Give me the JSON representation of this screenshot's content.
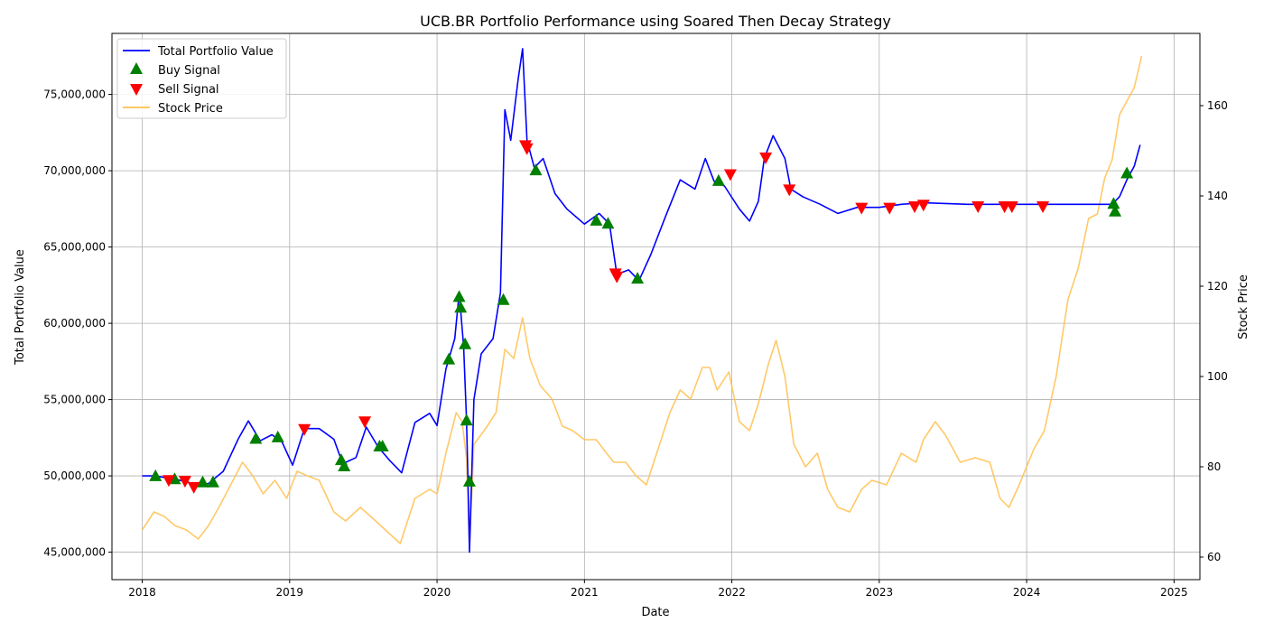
{
  "chart_data": {
    "type": "line",
    "title": "UCB.BR Portfolio Performance using Soared Then Decay Strategy",
    "xlabel": "Date",
    "ylabel_left": "Total Portfolio Value",
    "ylabel_right": "Stock Price",
    "x_range": [
      "2017-10-18",
      "2025-03-06"
    ],
    "y_left_range": [
      43200000,
      79000000
    ],
    "y_right_range": [
      55,
      176
    ],
    "x_ticks": [
      "2018",
      "2019",
      "2020",
      "2021",
      "2022",
      "2023",
      "2024",
      "2025"
    ],
    "x_tick_values": [
      2018,
      2019,
      2020,
      2021,
      2022,
      2023,
      2024,
      2025
    ],
    "y_left_ticks": [
      "45,000,000",
      "50,000,000",
      "55,000,000",
      "60,000,000",
      "65,000,000",
      "70,000,000",
      "75,000,000"
    ],
    "y_left_tick_values": [
      45000000,
      50000000,
      55000000,
      60000000,
      65000000,
      70000000,
      75000000
    ],
    "y_right_ticks": [
      "60",
      "80",
      "100",
      "120",
      "140",
      "160"
    ],
    "y_right_tick_values": [
      60,
      80,
      100,
      120,
      140,
      160
    ],
    "grid": true,
    "legend_position": "top-left",
    "legend": [
      {
        "label": "Total Portfolio Value",
        "marker": "line",
        "color": "#0000ff"
      },
      {
        "label": "Buy Signal",
        "marker": "triangle-up",
        "color": "#008000"
      },
      {
        "label": "Sell Signal",
        "marker": "triangle-down",
        "color": "#ff0000"
      },
      {
        "label": "Stock Price",
        "marker": "line",
        "color": "#ffc04d"
      }
    ],
    "series": [
      {
        "name": "Total Portfolio Value",
        "axis": "left",
        "color": "#0000ff",
        "points": [
          [
            2018.0,
            50000000
          ],
          [
            2018.08,
            50000000
          ],
          [
            2018.15,
            49900000
          ],
          [
            2018.22,
            49800000
          ],
          [
            2018.3,
            49600000
          ],
          [
            2018.38,
            49400000
          ],
          [
            2018.45,
            49500000
          ],
          [
            2018.55,
            50300000
          ],
          [
            2018.65,
            52400000
          ],
          [
            2018.72,
            53600000
          ],
          [
            2018.8,
            52300000
          ],
          [
            2018.88,
            52700000
          ],
          [
            2018.95,
            52200000
          ],
          [
            2019.02,
            50700000
          ],
          [
            2019.1,
            53100000
          ],
          [
            2019.2,
            53100000
          ],
          [
            2019.3,
            52400000
          ],
          [
            2019.36,
            50800000
          ],
          [
            2019.45,
            51200000
          ],
          [
            2019.52,
            53200000
          ],
          [
            2019.6,
            51900000
          ],
          [
            2019.68,
            51000000
          ],
          [
            2019.76,
            50200000
          ],
          [
            2019.85,
            53500000
          ],
          [
            2019.95,
            54100000
          ],
          [
            2020.0,
            53300000
          ],
          [
            2020.06,
            57000000
          ],
          [
            2020.12,
            59000000
          ],
          [
            2020.15,
            62000000
          ],
          [
            2020.18,
            58500000
          ],
          [
            2020.2,
            53700000
          ],
          [
            2020.21,
            49500000
          ],
          [
            2020.22,
            45000000
          ],
          [
            2020.25,
            55000000
          ],
          [
            2020.3,
            58000000
          ],
          [
            2020.38,
            59000000
          ],
          [
            2020.43,
            62000000
          ],
          [
            2020.46,
            74000000
          ],
          [
            2020.5,
            72000000
          ],
          [
            2020.55,
            76000000
          ],
          [
            2020.58,
            78000000
          ],
          [
            2020.61,
            72000000
          ],
          [
            2020.66,
            70200000
          ],
          [
            2020.72,
            70800000
          ],
          [
            2020.8,
            68500000
          ],
          [
            2020.88,
            67500000
          ],
          [
            2021.0,
            66500000
          ],
          [
            2021.1,
            67200000
          ],
          [
            2021.17,
            66500000
          ],
          [
            2021.22,
            63200000
          ],
          [
            2021.3,
            63500000
          ],
          [
            2021.37,
            62800000
          ],
          [
            2021.45,
            64500000
          ],
          [
            2021.55,
            67000000
          ],
          [
            2021.65,
            69400000
          ],
          [
            2021.75,
            68800000
          ],
          [
            2021.82,
            70800000
          ],
          [
            2021.88,
            69300000
          ],
          [
            2021.95,
            69000000
          ],
          [
            2022.05,
            67500000
          ],
          [
            2022.12,
            66700000
          ],
          [
            2022.18,
            68000000
          ],
          [
            2022.22,
            70800000
          ],
          [
            2022.28,
            72300000
          ],
          [
            2022.36,
            70800000
          ],
          [
            2022.4,
            68800000
          ],
          [
            2022.48,
            68300000
          ],
          [
            2022.6,
            67800000
          ],
          [
            2022.72,
            67200000
          ],
          [
            2022.85,
            67600000
          ],
          [
            2023.0,
            67600000
          ],
          [
            2023.15,
            67800000
          ],
          [
            2023.3,
            67900000
          ],
          [
            2023.6,
            67800000
          ],
          [
            2024.0,
            67800000
          ],
          [
            2024.4,
            67800000
          ],
          [
            2024.58,
            67800000
          ],
          [
            2024.63,
            68300000
          ],
          [
            2024.68,
            69400000
          ],
          [
            2024.73,
            70300000
          ],
          [
            2024.77,
            71700000
          ]
        ]
      },
      {
        "name": "Stock Price",
        "axis": "right",
        "color": "#ffc04d",
        "points": [
          [
            2018.0,
            66
          ],
          [
            2018.08,
            70
          ],
          [
            2018.15,
            69
          ],
          [
            2018.22,
            67
          ],
          [
            2018.3,
            66
          ],
          [
            2018.38,
            64
          ],
          [
            2018.45,
            67
          ],
          [
            2018.52,
            71
          ],
          [
            2018.6,
            76
          ],
          [
            2018.68,
            81
          ],
          [
            2018.75,
            78
          ],
          [
            2018.82,
            74
          ],
          [
            2018.9,
            77
          ],
          [
            2018.98,
            73
          ],
          [
            2019.05,
            79
          ],
          [
            2019.12,
            78
          ],
          [
            2019.2,
            77
          ],
          [
            2019.3,
            70
          ],
          [
            2019.38,
            68
          ],
          [
            2019.48,
            71
          ],
          [
            2019.55,
            69
          ],
          [
            2019.65,
            66
          ],
          [
            2019.75,
            63
          ],
          [
            2019.85,
            73
          ],
          [
            2019.95,
            75
          ],
          [
            2020.0,
            74
          ],
          [
            2020.06,
            83
          ],
          [
            2020.13,
            92
          ],
          [
            2020.17,
            90
          ],
          [
            2020.2,
            82
          ],
          [
            2020.22,
            62
          ],
          [
            2020.25,
            85
          ],
          [
            2020.32,
            88
          ],
          [
            2020.4,
            92
          ],
          [
            2020.46,
            106
          ],
          [
            2020.52,
            104
          ],
          [
            2020.58,
            113
          ],
          [
            2020.63,
            104
          ],
          [
            2020.7,
            98
          ],
          [
            2020.78,
            95
          ],
          [
            2020.85,
            89
          ],
          [
            2020.92,
            88
          ],
          [
            2021.0,
            86
          ],
          [
            2021.08,
            86
          ],
          [
            2021.15,
            83
          ],
          [
            2021.2,
            81
          ],
          [
            2021.28,
            81
          ],
          [
            2021.35,
            78
          ],
          [
            2021.42,
            76
          ],
          [
            2021.5,
            84
          ],
          [
            2021.58,
            92
          ],
          [
            2021.65,
            97
          ],
          [
            2021.72,
            95
          ],
          [
            2021.8,
            102
          ],
          [
            2021.85,
            102
          ],
          [
            2021.9,
            97
          ],
          [
            2021.98,
            101
          ],
          [
            2022.05,
            90
          ],
          [
            2022.12,
            88
          ],
          [
            2022.18,
            94
          ],
          [
            2022.25,
            103
          ],
          [
            2022.3,
            108
          ],
          [
            2022.36,
            100
          ],
          [
            2022.42,
            85
          ],
          [
            2022.5,
            80
          ],
          [
            2022.58,
            83
          ],
          [
            2022.65,
            75
          ],
          [
            2022.72,
            71
          ],
          [
            2022.8,
            70
          ],
          [
            2022.88,
            75
          ],
          [
            2022.95,
            77
          ],
          [
            2023.05,
            76
          ],
          [
            2023.15,
            83
          ],
          [
            2023.25,
            81
          ],
          [
            2023.3,
            86
          ],
          [
            2023.38,
            90
          ],
          [
            2023.45,
            87
          ],
          [
            2023.55,
            81
          ],
          [
            2023.65,
            82
          ],
          [
            2023.75,
            81
          ],
          [
            2023.82,
            73
          ],
          [
            2023.88,
            71
          ],
          [
            2023.95,
            76
          ],
          [
            2024.05,
            84
          ],
          [
            2024.12,
            88
          ],
          [
            2024.2,
            100
          ],
          [
            2024.28,
            117
          ],
          [
            2024.35,
            124
          ],
          [
            2024.42,
            135
          ],
          [
            2024.48,
            136
          ],
          [
            2024.53,
            144
          ],
          [
            2024.58,
            148
          ],
          [
            2024.63,
            158
          ],
          [
            2024.68,
            161
          ],
          [
            2024.73,
            164
          ],
          [
            2024.78,
            171
          ]
        ]
      }
    ],
    "buy_signals": [
      [
        2018.09,
        49950000
      ],
      [
        2018.22,
        49750000
      ],
      [
        2018.41,
        49550000
      ],
      [
        2018.48,
        49550000
      ],
      [
        2018.77,
        52400000
      ],
      [
        2018.92,
        52500000
      ],
      [
        2019.35,
        51000000
      ],
      [
        2019.37,
        50600000
      ],
      [
        2019.61,
        51900000
      ],
      [
        2019.63,
        51900000
      ],
      [
        2020.08,
        57600000
      ],
      [
        2020.15,
        61700000
      ],
      [
        2020.16,
        61000000
      ],
      [
        2020.19,
        58600000
      ],
      [
        2020.2,
        53600000
      ],
      [
        2020.22,
        49600000
      ],
      [
        2020.45,
        61500000
      ],
      [
        2020.67,
        70000000
      ],
      [
        2021.08,
        66700000
      ],
      [
        2021.16,
        66500000
      ],
      [
        2021.36,
        62900000
      ],
      [
        2021.91,
        69300000
      ],
      [
        2024.59,
        67800000
      ],
      [
        2024.6,
        67300000
      ],
      [
        2024.68,
        69800000
      ]
    ],
    "sell_signals": [
      [
        2018.18,
        49750000
      ],
      [
        2018.29,
        49700000
      ],
      [
        2018.35,
        49300000
      ],
      [
        2019.1,
        53100000
      ],
      [
        2019.51,
        53600000
      ],
      [
        2020.6,
        71700000
      ],
      [
        2020.61,
        71500000
      ],
      [
        2021.21,
        63300000
      ],
      [
        2021.22,
        63100000
      ],
      [
        2021.99,
        69800000
      ],
      [
        2022.23,
        70900000
      ],
      [
        2022.39,
        68800000
      ],
      [
        2022.88,
        67600000
      ],
      [
        2023.07,
        67600000
      ],
      [
        2023.24,
        67700000
      ],
      [
        2023.3,
        67800000
      ],
      [
        2023.67,
        67700000
      ],
      [
        2023.85,
        67700000
      ],
      [
        2023.9,
        67700000
      ],
      [
        2024.11,
        67700000
      ]
    ]
  }
}
